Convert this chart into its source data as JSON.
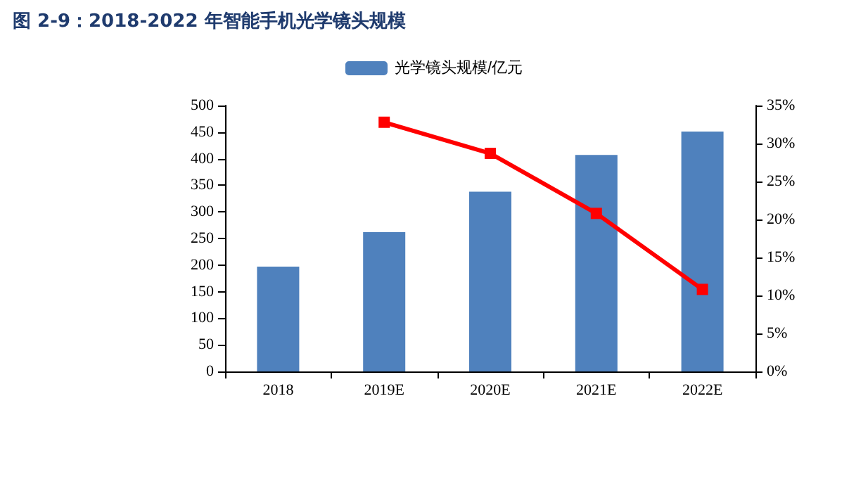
{
  "chart_data": {
    "type": "bar",
    "title": "图 2-9：2018-2022 年智能手机光学镜头规模",
    "categories": [
      "2018",
      "2019E",
      "2020E",
      "2021E",
      "2022E"
    ],
    "series": [
      {
        "name": "光学镜头规模/亿元",
        "color": "#4f81bd",
        "values": [
          197,
          262,
          338,
          407,
          451
        ]
      },
      {
        "type": "line",
        "axis": "y2",
        "color": "#ff0000",
        "marker": "square",
        "values": [
          null,
          32.8,
          28.7,
          20.8,
          10.8
        ]
      }
    ],
    "ylim": [
      0,
      500
    ],
    "yticks": [
      0,
      50,
      100,
      150,
      200,
      250,
      300,
      350,
      400,
      450,
      500
    ],
    "y2lim": [
      0,
      35
    ],
    "y2ticks": [
      {
        "value": 0,
        "label": "0%"
      },
      {
        "value": 5,
        "label": "5%"
      },
      {
        "value": 10,
        "label": "10%"
      },
      {
        "value": 15,
        "label": "15%"
      },
      {
        "value": 20,
        "label": "20%"
      },
      {
        "value": 25,
        "label": "25%"
      },
      {
        "value": 30,
        "label": "30%"
      },
      {
        "value": 35,
        "label": "35%"
      }
    ],
    "legend": "top",
    "grid": false
  }
}
